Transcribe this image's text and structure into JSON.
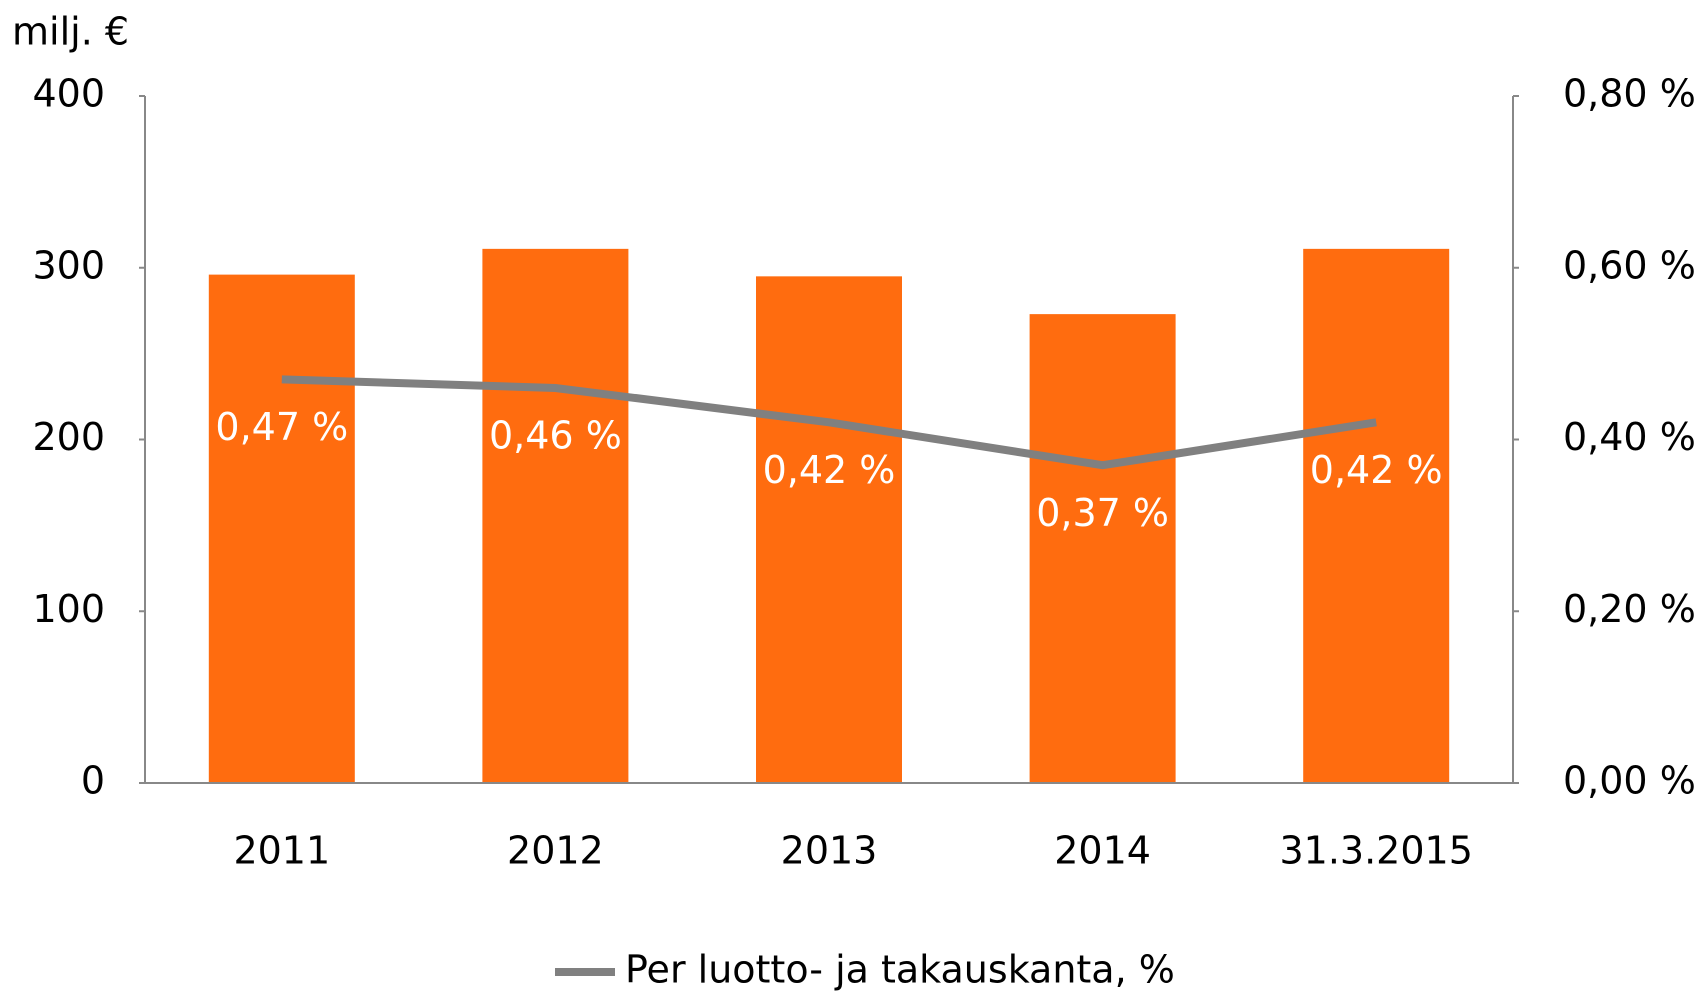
{
  "chart_data": {
    "type": "bar",
    "y_axis_label": "milj. €",
    "categories": [
      "2011",
      "2012",
      "2013",
      "2014",
      "31.3.2015"
    ],
    "series": [
      {
        "type": "bar",
        "color": "#ff6c0f",
        "values": [
          296,
          311,
          295,
          273,
          311
        ]
      },
      {
        "type": "line",
        "name": "Per luotto- ja takauskanta, %",
        "color": "#808080",
        "axis": "y2",
        "values": [
          0.47,
          0.46,
          0.42,
          0.37,
          0.42
        ],
        "value_labels": [
          "0,47 %",
          "0,46 %",
          "0,42 %",
          "0,37 %",
          "0,42 %"
        ]
      }
    ],
    "ylim": [
      0,
      400
    ],
    "yticks": [
      0,
      100,
      200,
      300,
      400
    ],
    "y2lim": [
      0,
      0.8
    ],
    "y2ticks": [
      {
        "value": 0,
        "label": "0,00 %"
      },
      {
        "value": 0.2,
        "label": "0,20 %"
      },
      {
        "value": 0.4,
        "label": "0,40 %"
      },
      {
        "value": 0.6,
        "label": "0,60 %"
      },
      {
        "value": 0.8,
        "label": "0,80 %"
      }
    ],
    "grid": false,
    "legend": "bottom"
  }
}
